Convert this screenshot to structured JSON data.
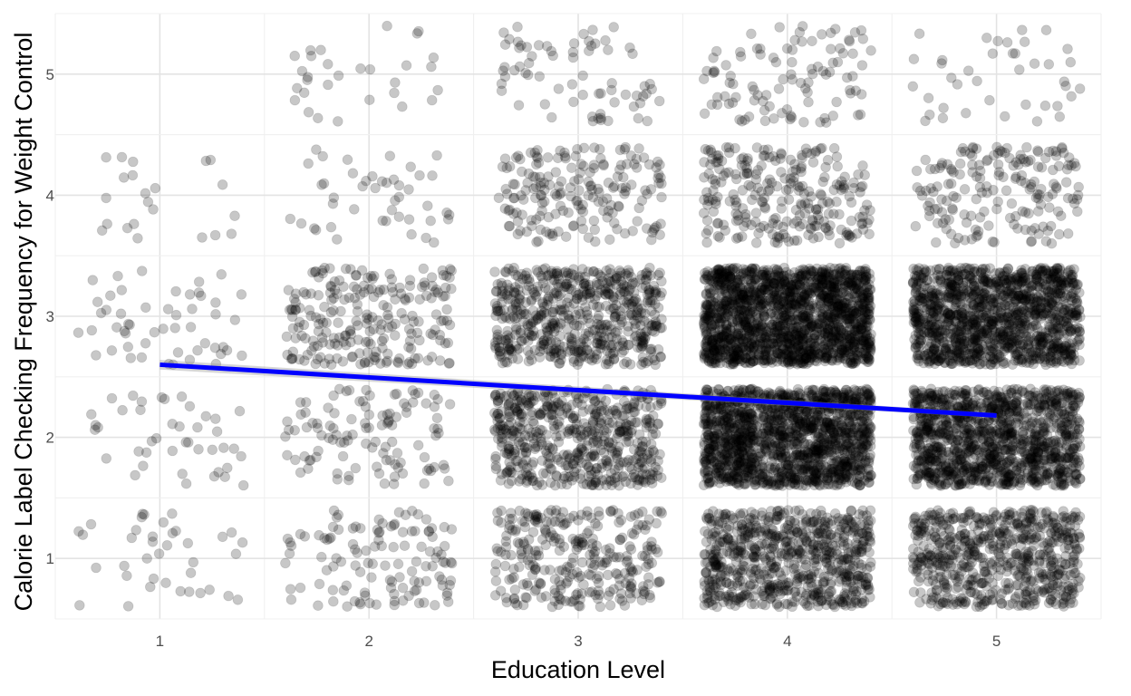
{
  "chart_data": {
    "type": "scatter",
    "subtype": "jittered scatter with linear trend line",
    "title": "",
    "xlabel": "Education Level",
    "ylabel": "Calorie Label Checking Frequency for Weight Control",
    "x_ticks": [
      1,
      2,
      3,
      4,
      5
    ],
    "y_ticks": [
      1,
      2,
      3,
      4,
      5
    ],
    "xlim": [
      0.5,
      5.5
    ],
    "ylim": [
      0.5,
      5.5
    ],
    "grid": true,
    "legend": "none",
    "jitter": {
      "x": 0.4,
      "y": 0.4
    },
    "points": {
      "color": "#000000",
      "alpha": 0.22,
      "approx_counts_by_cell": [
        {
          "x": 1,
          "y": 1,
          "n": 38
        },
        {
          "x": 1,
          "y": 2,
          "n": 42
        },
        {
          "x": 1,
          "y": 3,
          "n": 52
        },
        {
          "x": 1,
          "y": 4,
          "n": 22
        },
        {
          "x": 1,
          "y": 5,
          "n": 0
        },
        {
          "x": 2,
          "y": 1,
          "n": 120
        },
        {
          "x": 2,
          "y": 2,
          "n": 110
        },
        {
          "x": 2,
          "y": 3,
          "n": 230
        },
        {
          "x": 2,
          "y": 4,
          "n": 45
        },
        {
          "x": 2,
          "y": 5,
          "n": 30
        },
        {
          "x": 3,
          "y": 1,
          "n": 300
        },
        {
          "x": 3,
          "y": 2,
          "n": 560
        },
        {
          "x": 3,
          "y": 3,
          "n": 600
        },
        {
          "x": 3,
          "y": 4,
          "n": 190
        },
        {
          "x": 3,
          "y": 5,
          "n": 70
        },
        {
          "x": 4,
          "y": 1,
          "n": 720
        },
        {
          "x": 4,
          "y": 2,
          "n": 1500
        },
        {
          "x": 4,
          "y": 3,
          "n": 1700
        },
        {
          "x": 4,
          "y": 4,
          "n": 260
        },
        {
          "x": 4,
          "y": 5,
          "n": 100
        },
        {
          "x": 5,
          "y": 1,
          "n": 640
        },
        {
          "x": 5,
          "y": 2,
          "n": 1200
        },
        {
          "x": 5,
          "y": 3,
          "n": 1300
        },
        {
          "x": 5,
          "y": 4,
          "n": 180
        },
        {
          "x": 5,
          "y": 5,
          "n": 40
        }
      ]
    },
    "trend_line": {
      "type": "linear fit",
      "color": "#0000ff",
      "x": [
        1,
        5
      ],
      "y": [
        2.6,
        2.18
      ],
      "ci_band": {
        "color": "#999999",
        "alpha": 0.4,
        "half_width": [
          0.04,
          0.02
        ]
      }
    }
  }
}
